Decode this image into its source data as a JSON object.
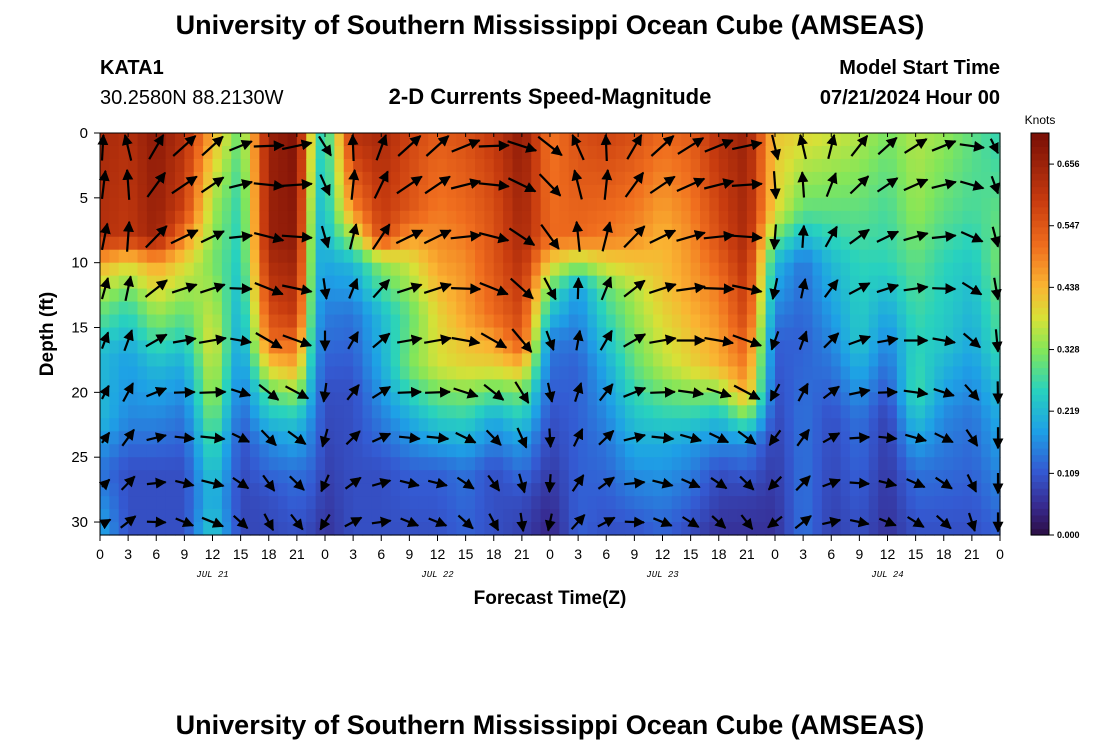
{
  "header": {
    "title": "University of Southern Mississippi Ocean Cube (AMSEAS)",
    "station": "KATA1",
    "coords": "30.2580N  88.2130W",
    "subtitle": "2-D Currents Speed-Magnitude",
    "model_label": "Model Start Time",
    "model_time": "07/21/2024 Hour 00"
  },
  "footer": {
    "title": "University of Southern Mississippi Ocean Cube (AMSEAS)"
  },
  "chart_data": {
    "type": "heatmap",
    "xlabel": "Forecast Time(Z)",
    "ylabel": "Depth (ft)",
    "x_range_hours": [
      0,
      96
    ],
    "y_range_ft": [
      0,
      31
    ],
    "x_tick_hours": [
      0,
      3,
      6,
      9,
      12,
      15,
      18,
      21,
      24,
      27,
      30,
      33,
      36,
      39,
      42,
      45,
      48,
      51,
      54,
      57,
      60,
      63,
      66,
      69,
      72,
      75,
      78,
      81,
      84,
      87,
      90,
      93,
      96
    ],
    "x_tick_labels": [
      "0",
      "3",
      "6",
      "9",
      "12",
      "15",
      "18",
      "21",
      "0",
      "3",
      "6",
      "9",
      "12",
      "15",
      "18",
      "21",
      "0",
      "3",
      "6",
      "9",
      "12",
      "15",
      "18",
      "21",
      "0",
      "3",
      "6",
      "9",
      "12",
      "15",
      "18",
      "21",
      "0"
    ],
    "y_ticks": [
      0,
      5,
      10,
      15,
      20,
      25,
      30
    ],
    "y_tick_labels": [
      "0",
      "5",
      "10",
      "15",
      "20",
      "25",
      "30"
    ],
    "day_labels": [
      {
        "text": "JUL 21",
        "hour": 12
      },
      {
        "text": "JUL 22",
        "hour": 36
      },
      {
        "text": "JUL 23",
        "hour": 60
      },
      {
        "text": "JUL 24",
        "hour": 84
      }
    ],
    "colorbar": {
      "unit": "Knots",
      "min": 0.0,
      "max": 0.711,
      "tick_values": [
        0.0,
        0.109,
        0.219,
        0.328,
        0.438,
        0.547,
        0.656
      ],
      "tick_labels": [
        "0.000",
        "0.109",
        "0.219",
        "0.328",
        "0.438",
        "0.547",
        "0.656"
      ]
    },
    "speed_columns_knots": [
      {
        "hour": 0,
        "by_depth": [
          [
            0,
            0.64
          ],
          [
            8,
            0.62
          ],
          [
            10,
            0.45
          ],
          [
            13,
            0.33
          ],
          [
            17,
            0.22
          ],
          [
            22,
            0.22
          ],
          [
            26,
            0.14
          ],
          [
            31,
            0.2
          ]
        ]
      },
      {
        "hour": 3,
        "by_depth": [
          [
            0,
            0.62
          ],
          [
            8,
            0.6
          ],
          [
            10,
            0.4
          ],
          [
            13,
            0.28
          ],
          [
            17,
            0.19
          ],
          [
            22,
            0.16
          ],
          [
            26,
            0.1
          ],
          [
            31,
            0.1
          ]
        ]
      },
      {
        "hour": 6,
        "by_depth": [
          [
            0,
            0.68
          ],
          [
            8,
            0.66
          ],
          [
            10,
            0.46
          ],
          [
            14,
            0.34
          ],
          [
            18,
            0.22
          ],
          [
            22,
            0.16
          ],
          [
            26,
            0.1
          ],
          [
            31,
            0.1
          ]
        ]
      },
      {
        "hour": 9,
        "by_depth": [
          [
            0,
            0.62
          ],
          [
            6,
            0.58
          ],
          [
            10,
            0.4
          ],
          [
            14,
            0.3
          ],
          [
            18,
            0.2
          ],
          [
            22,
            0.14
          ],
          [
            26,
            0.1
          ],
          [
            31,
            0.1
          ]
        ]
      },
      {
        "hour": 12,
        "by_depth": [
          [
            0,
            0.45
          ],
          [
            5,
            0.36
          ],
          [
            10,
            0.32
          ],
          [
            16,
            0.4
          ],
          [
            20,
            0.36
          ],
          [
            24,
            0.28
          ],
          [
            28,
            0.22
          ],
          [
            31,
            0.25
          ]
        ]
      },
      {
        "hour": 15,
        "by_depth": [
          [
            0,
            0.3
          ],
          [
            5,
            0.26
          ],
          [
            10,
            0.24
          ],
          [
            16,
            0.18
          ],
          [
            20,
            0.14
          ],
          [
            24,
            0.1
          ],
          [
            28,
            0.09
          ],
          [
            31,
            0.09
          ]
        ]
      },
      {
        "hour": 18,
        "by_depth": [
          [
            0,
            0.66
          ],
          [
            8,
            0.66
          ],
          [
            12,
            0.6
          ],
          [
            16,
            0.52
          ],
          [
            20,
            0.3
          ],
          [
            24,
            0.16
          ],
          [
            28,
            0.1
          ],
          [
            31,
            0.09
          ]
        ]
      },
      {
        "hour": 21,
        "by_depth": [
          [
            0,
            0.7
          ],
          [
            8,
            0.68
          ],
          [
            14,
            0.6
          ],
          [
            18,
            0.45
          ],
          [
            22,
            0.24
          ],
          [
            26,
            0.14
          ],
          [
            31,
            0.1
          ]
        ]
      },
      {
        "hour": 23,
        "by_depth": [
          [
            0,
            0.3
          ],
          [
            8,
            0.22
          ],
          [
            14,
            0.2
          ],
          [
            20,
            0.16
          ],
          [
            26,
            0.12
          ],
          [
            31,
            0.08
          ]
        ]
      },
      {
        "hour": 24,
        "by_depth": [
          [
            0,
            0.24
          ],
          [
            8,
            0.22
          ],
          [
            14,
            0.15
          ],
          [
            20,
            0.1
          ],
          [
            26,
            0.08
          ],
          [
            31,
            0.06
          ]
        ]
      },
      {
        "hour": 27,
        "by_depth": [
          [
            0,
            0.62
          ],
          [
            6,
            0.48
          ],
          [
            10,
            0.22
          ],
          [
            14,
            0.14
          ],
          [
            20,
            0.1
          ],
          [
            26,
            0.1
          ],
          [
            31,
            0.1
          ]
        ]
      },
      {
        "hour": 30,
        "by_depth": [
          [
            0,
            0.64
          ],
          [
            8,
            0.58
          ],
          [
            10,
            0.34
          ],
          [
            14,
            0.22
          ],
          [
            18,
            0.2
          ],
          [
            22,
            0.15
          ],
          [
            26,
            0.1
          ],
          [
            31,
            0.1
          ]
        ]
      },
      {
        "hour": 33,
        "by_depth": [
          [
            0,
            0.58
          ],
          [
            6,
            0.55
          ],
          [
            10,
            0.38
          ],
          [
            14,
            0.3
          ],
          [
            18,
            0.32
          ],
          [
            22,
            0.2
          ],
          [
            26,
            0.12
          ],
          [
            31,
            0.1
          ]
        ]
      },
      {
        "hour": 36,
        "by_depth": [
          [
            0,
            0.54
          ],
          [
            6,
            0.5
          ],
          [
            10,
            0.46
          ],
          [
            14,
            0.4
          ],
          [
            18,
            0.38
          ],
          [
            22,
            0.25
          ],
          [
            26,
            0.12
          ],
          [
            31,
            0.1
          ]
        ]
      },
      {
        "hour": 39,
        "by_depth": [
          [
            0,
            0.56
          ],
          [
            6,
            0.52
          ],
          [
            10,
            0.48
          ],
          [
            14,
            0.46
          ],
          [
            18,
            0.4
          ],
          [
            22,
            0.26
          ],
          [
            26,
            0.14
          ],
          [
            31,
            0.12
          ]
        ]
      },
      {
        "hour": 42,
        "by_depth": [
          [
            0,
            0.6
          ],
          [
            6,
            0.56
          ],
          [
            10,
            0.55
          ],
          [
            14,
            0.52
          ],
          [
            18,
            0.4
          ],
          [
            22,
            0.2
          ],
          [
            26,
            0.1
          ],
          [
            31,
            0.1
          ]
        ]
      },
      {
        "hour": 45,
        "by_depth": [
          [
            0,
            0.68
          ],
          [
            8,
            0.64
          ],
          [
            12,
            0.6
          ],
          [
            16,
            0.55
          ],
          [
            20,
            0.32
          ],
          [
            24,
            0.18
          ],
          [
            28,
            0.1
          ],
          [
            31,
            0.08
          ]
        ]
      },
      {
        "hour": 48,
        "by_depth": [
          [
            0,
            0.5
          ],
          [
            8,
            0.52
          ],
          [
            12,
            0.3
          ],
          [
            16,
            0.15
          ],
          [
            22,
            0.1
          ],
          [
            28,
            0.06
          ],
          [
            31,
            0.04
          ]
        ]
      },
      {
        "hour": 51,
        "by_depth": [
          [
            0,
            0.56
          ],
          [
            8,
            0.52
          ],
          [
            12,
            0.18
          ],
          [
            18,
            0.12
          ],
          [
            24,
            0.12
          ],
          [
            31,
            0.12
          ]
        ]
      },
      {
        "hour": 54,
        "by_depth": [
          [
            0,
            0.58
          ],
          [
            8,
            0.5
          ],
          [
            12,
            0.3
          ],
          [
            18,
            0.2
          ],
          [
            24,
            0.14
          ],
          [
            31,
            0.1
          ]
        ]
      },
      {
        "hour": 57,
        "by_depth": [
          [
            0,
            0.56
          ],
          [
            8,
            0.48
          ],
          [
            12,
            0.36
          ],
          [
            18,
            0.3
          ],
          [
            24,
            0.2
          ],
          [
            31,
            0.1
          ]
        ]
      },
      {
        "hour": 60,
        "by_depth": [
          [
            0,
            0.52
          ],
          [
            8,
            0.44
          ],
          [
            12,
            0.42
          ],
          [
            18,
            0.36
          ],
          [
            24,
            0.2
          ],
          [
            31,
            0.12
          ]
        ]
      },
      {
        "hour": 63,
        "by_depth": [
          [
            0,
            0.54
          ],
          [
            8,
            0.48
          ],
          [
            12,
            0.46
          ],
          [
            18,
            0.4
          ],
          [
            24,
            0.18
          ],
          [
            31,
            0.09
          ]
        ]
      },
      {
        "hour": 66,
        "by_depth": [
          [
            0,
            0.62
          ],
          [
            8,
            0.56
          ],
          [
            12,
            0.5
          ],
          [
            18,
            0.44
          ],
          [
            22,
            0.22
          ],
          [
            26,
            0.1
          ],
          [
            31,
            0.06
          ]
        ]
      },
      {
        "hour": 69,
        "by_depth": [
          [
            0,
            0.66
          ],
          [
            8,
            0.64
          ],
          [
            14,
            0.58
          ],
          [
            20,
            0.46
          ],
          [
            24,
            0.16
          ],
          [
            28,
            0.08
          ],
          [
            31,
            0.06
          ]
        ]
      },
      {
        "hour": 72,
        "by_depth": [
          [
            0,
            0.42
          ],
          [
            6,
            0.4
          ],
          [
            10,
            0.22
          ],
          [
            16,
            0.12
          ],
          [
            24,
            0.08
          ],
          [
            31,
            0.06
          ]
        ]
      },
      {
        "hour": 75,
        "by_depth": [
          [
            0,
            0.4
          ],
          [
            6,
            0.3
          ],
          [
            10,
            0.14
          ],
          [
            16,
            0.12
          ],
          [
            22,
            0.14
          ],
          [
            31,
            0.14
          ]
        ]
      },
      {
        "hour": 78,
        "by_depth": [
          [
            0,
            0.38
          ],
          [
            6,
            0.3
          ],
          [
            10,
            0.22
          ],
          [
            16,
            0.16
          ],
          [
            22,
            0.1
          ],
          [
            31,
            0.08
          ]
        ]
      },
      {
        "hour": 81,
        "by_depth": [
          [
            0,
            0.36
          ],
          [
            6,
            0.3
          ],
          [
            10,
            0.26
          ],
          [
            16,
            0.24
          ],
          [
            22,
            0.14
          ],
          [
            31,
            0.1
          ]
        ]
      },
      {
        "hour": 84,
        "by_depth": [
          [
            0,
            0.32
          ],
          [
            6,
            0.28
          ],
          [
            10,
            0.26
          ],
          [
            16,
            0.16
          ],
          [
            22,
            0.08
          ],
          [
            31,
            0.06
          ]
        ]
      },
      {
        "hour": 87,
        "by_depth": [
          [
            0,
            0.36
          ],
          [
            6,
            0.34
          ],
          [
            10,
            0.3
          ],
          [
            16,
            0.26
          ],
          [
            20,
            0.28
          ],
          [
            26,
            0.14
          ],
          [
            31,
            0.1
          ]
        ]
      },
      {
        "hour": 90,
        "by_depth": [
          [
            0,
            0.34
          ],
          [
            6,
            0.3
          ],
          [
            10,
            0.26
          ],
          [
            16,
            0.24
          ],
          [
            22,
            0.16
          ],
          [
            31,
            0.1
          ]
        ]
      },
      {
        "hour": 93,
        "by_depth": [
          [
            0,
            0.3
          ],
          [
            6,
            0.28
          ],
          [
            10,
            0.24
          ],
          [
            16,
            0.2
          ],
          [
            22,
            0.14
          ],
          [
            31,
            0.1
          ]
        ]
      },
      {
        "hour": 96,
        "by_depth": [
          [
            0,
            0.26
          ],
          [
            6,
            0.3
          ],
          [
            10,
            0.32
          ],
          [
            16,
            0.28
          ],
          [
            22,
            0.2
          ],
          [
            31,
            0.12
          ]
        ]
      }
    ],
    "vector_depths_ft": [
      1,
      4,
      8,
      12,
      16,
      20,
      23.5,
      27,
      30
    ],
    "vector_hours_step": 3,
    "vector_direction_deg_by_hour": {
      "0": 45,
      "3": 20,
      "6": 60,
      "9": 80,
      "12": 80,
      "15": 100,
      "18": 120,
      "21": 110,
      "24": 180,
      "27": 30,
      "30": 50,
      "33": 80,
      "36": 80,
      "39": 100,
      "42": 120,
      "45": 140,
      "48": 160,
      "51": 10,
      "54": 30,
      "57": 60,
      "60": 80,
      "63": 90,
      "66": 100,
      "69": 110,
      "72": 200,
      "75": 20,
      "78": 45,
      "81": 70,
      "84": 80,
      "87": 90,
      "90": 100,
      "93": 130,
      "96": 160
    }
  }
}
